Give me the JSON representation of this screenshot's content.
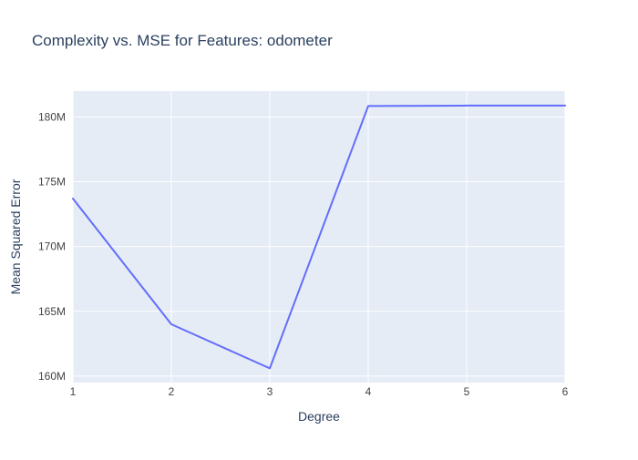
{
  "chart_data": {
    "type": "line",
    "title": "Complexity vs. MSE for Features: odometer",
    "xlabel": "Degree",
    "ylabel": "Mean Squared Error",
    "x": [
      1,
      2,
      3,
      4,
      5,
      6
    ],
    "series": [
      {
        "values": [
          173700000,
          164000000,
          160600000,
          180850000,
          180880000,
          180880000
        ]
      }
    ],
    "xlim": [
      1,
      6
    ],
    "ylim": [
      159500000,
      182000000
    ],
    "x_ticks": [
      1,
      2,
      3,
      4,
      5,
      6
    ],
    "x_tick_labels": [
      "1",
      "2",
      "3",
      "4",
      "5",
      "6"
    ],
    "y_ticks": [
      160000000,
      165000000,
      170000000,
      175000000,
      180000000
    ],
    "y_tick_labels": [
      "160M",
      "165M",
      "170M",
      "175M",
      "180M"
    ],
    "grid": true,
    "colors": {
      "plot_background": "#e5ecf6",
      "grid": "#ffffff",
      "line": "#636efa",
      "text": "#2a3f5f",
      "tick_text": "#444444"
    }
  }
}
